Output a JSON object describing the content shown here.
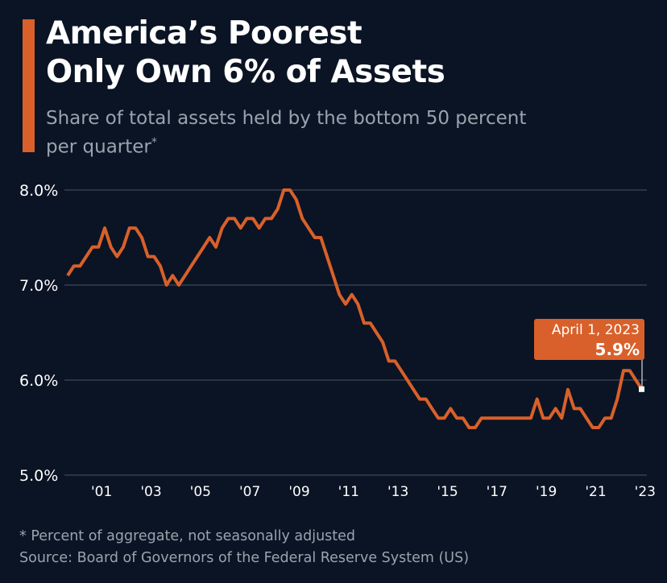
{
  "header": {
    "title_line1": "America’s Poorest",
    "title_line2": "Only Own 6% of Assets",
    "subtitle_line1": "Share of total assets held by the bottom 50 percent",
    "subtitle_line2": "per quarter",
    "subtitle_mark": "*"
  },
  "footer": {
    "note": "* Percent of aggregate, not seasonally adjusted",
    "source": "Source: Board of Governors of the Federal Reserve System (US)"
  },
  "colors": {
    "accent": "#d9602a",
    "background": "#0b1424",
    "grid": "#4a5566"
  },
  "chart_data": {
    "type": "line",
    "title": "America’s Poorest Only Own 6% of Assets",
    "subtitle": "Share of total assets held by the bottom 50 percent per quarter*",
    "x_start": "2000-01-01",
    "x_frequency": "quarterly",
    "x_end": "2023-04-01",
    "ylim": [
      5.0,
      8.0
    ],
    "yticks": [
      5.0,
      6.0,
      7.0,
      8.0
    ],
    "ytick_labels": [
      "5.0%",
      "6.0%",
      "7.0%",
      "8.0%"
    ],
    "xtick_labels": [
      "'01",
      "'03",
      "'05",
      "'07",
      "'09",
      "'11",
      "'13",
      "'15",
      "'17",
      "'19",
      "'21",
      "'23"
    ],
    "xtick_years": [
      2001,
      2003,
      2005,
      2007,
      2009,
      2011,
      2013,
      2015,
      2017,
      2019,
      2021,
      2023
    ],
    "grid": "horizontal",
    "values": [
      7.1,
      7.2,
      7.2,
      7.3,
      7.4,
      7.4,
      7.6,
      7.4,
      7.3,
      7.4,
      7.6,
      7.6,
      7.5,
      7.3,
      7.3,
      7.2,
      7.0,
      7.1,
      7.0,
      7.1,
      7.2,
      7.3,
      7.4,
      7.5,
      7.4,
      7.6,
      7.7,
      7.7,
      7.6,
      7.7,
      7.7,
      7.6,
      7.7,
      7.7,
      7.8,
      8.0,
      8.0,
      7.9,
      7.7,
      7.6,
      7.5,
      7.5,
      7.3,
      7.1,
      6.9,
      6.8,
      6.9,
      6.8,
      6.6,
      6.6,
      6.5,
      6.4,
      6.2,
      6.2,
      6.1,
      6.0,
      5.9,
      5.8,
      5.8,
      5.7,
      5.6,
      5.6,
      5.7,
      5.6,
      5.6,
      5.5,
      5.5,
      5.6,
      5.6,
      5.6,
      5.6,
      5.6,
      5.6,
      5.6,
      5.6,
      5.6,
      5.8,
      5.6,
      5.6,
      5.7,
      5.6,
      5.9,
      5.7,
      5.7,
      5.6,
      5.5,
      5.5,
      5.6,
      5.6,
      5.8,
      6.1,
      6.1,
      6.0,
      5.9
    ],
    "annotation": {
      "date": "April 1, 2023",
      "value": "5.9%"
    }
  }
}
